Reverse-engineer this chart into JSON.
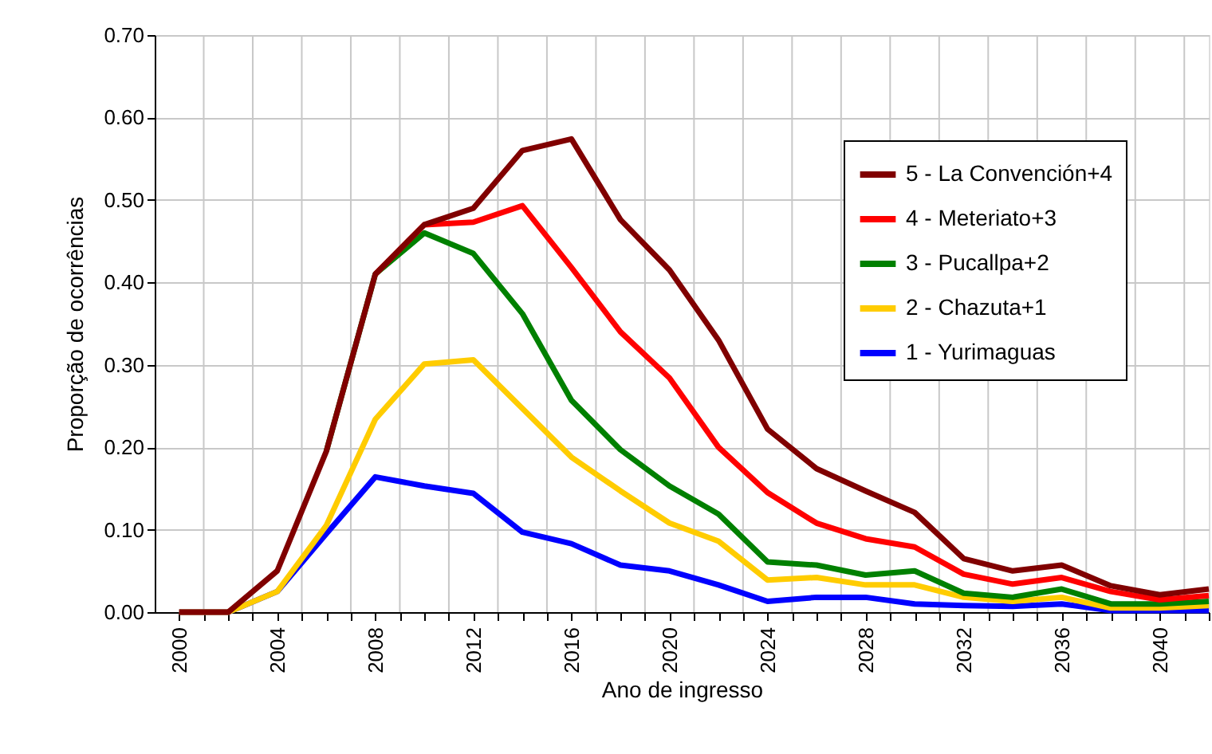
{
  "chart_data": {
    "type": "line",
    "xlabel": "Ano de ingresso",
    "ylabel": "Proporção de ocorrências",
    "x": [
      2000,
      2002,
      2004,
      2006,
      2008,
      2010,
      2012,
      2014,
      2016,
      2018,
      2020,
      2022,
      2024,
      2026,
      2028,
      2030,
      2032,
      2034,
      2036,
      2038,
      2040,
      2042
    ],
    "series": [
      {
        "name": "5 - La Convención+4",
        "color": "#800000",
        "values": [
          0,
          0,
          0.05,
          0.195,
          0.41,
          0.47,
          0.49,
          0.56,
          0.574,
          0.476,
          0.415,
          0.33,
          0.222,
          0.174,
          0.147,
          0.121,
          0.065,
          0.05,
          0.057,
          0.032,
          0.021,
          0.028
        ]
      },
      {
        "name": "4 - Meteriato+3",
        "color": "#ff0000",
        "values": [
          null,
          null,
          null,
          null,
          0.41,
          0.47,
          0.473,
          0.493,
          0.418,
          0.34,
          0.284,
          0.2,
          0.145,
          0.108,
          0.089,
          0.079,
          0.046,
          0.034,
          0.042,
          0.025,
          0.015,
          0.02
        ]
      },
      {
        "name": "3 - Pucallpa+2",
        "color": "#008000",
        "values": [
          null,
          null,
          null,
          0.195,
          0.41,
          0.46,
          0.435,
          0.362,
          0.257,
          0.197,
          0.153,
          0.119,
          0.061,
          0.057,
          0.045,
          0.05,
          0.023,
          0.018,
          0.028,
          0.01,
          0.01,
          0.013
        ]
      },
      {
        "name": "2 - Chazuta+1",
        "color": "#ffcc00",
        "values": [
          0,
          0,
          0.025,
          0.105,
          0.234,
          0.301,
          0.306,
          0.247,
          0.188,
          0.147,
          0.108,
          0.086,
          0.039,
          0.042,
          0.033,
          0.033,
          0.018,
          0.013,
          0.018,
          0.005,
          0.005,
          0.008
        ]
      },
      {
        "name": "1 - Yurimaguas",
        "color": "#0000ff",
        "values": [
          0,
          0,
          0.025,
          0.095,
          0.164,
          0.153,
          0.144,
          0.097,
          0.083,
          0.057,
          0.05,
          0.033,
          0.013,
          0.018,
          0.018,
          0.01,
          0.008,
          0.007,
          0.01,
          0.002,
          0.002,
          0.002
        ]
      }
    ],
    "xlim": [
      1999,
      2042
    ],
    "xticks": [
      2000,
      {
        "value": 2001,
        "label": null
      },
      {
        "value": 2002,
        "label": null
      },
      {
        "value": 2003,
        "label": null
      },
      2004,
      {
        "value": 2005,
        "label": null
      },
      {
        "value": 2006,
        "label": null
      },
      {
        "value": 2007,
        "label": null
      },
      2008,
      {
        "value": 2009,
        "label": null
      },
      {
        "value": 2010,
        "label": null
      },
      {
        "value": 2011,
        "label": null
      },
      2012,
      {
        "value": 2013,
        "label": null
      },
      {
        "value": 2014,
        "label": null
      },
      {
        "value": 2015,
        "label": null
      },
      2016,
      {
        "value": 2017,
        "label": null
      },
      {
        "value": 2018,
        "label": null
      },
      {
        "value": 2019,
        "label": null
      },
      2020,
      {
        "value": 2021,
        "label": null
      },
      {
        "value": 2022,
        "label": null
      },
      {
        "value": 2023,
        "label": null
      },
      2024,
      {
        "value": 2025,
        "label": null
      },
      {
        "value": 2026,
        "label": null
      },
      {
        "value": 2027,
        "label": null
      },
      2028,
      {
        "value": 2029,
        "label": null
      },
      {
        "value": 2030,
        "label": null
      },
      {
        "value": 2031,
        "label": null
      },
      2032,
      {
        "value": 2033,
        "label": null
      },
      {
        "value": 2034,
        "label": null
      },
      {
        "value": 2035,
        "label": null
      },
      2036,
      {
        "value": 2037,
        "label": null
      },
      {
        "value": 2038,
        "label": null
      },
      {
        "value": 2039,
        "label": null
      },
      2040,
      {
        "value": 2041,
        "label": null
      },
      {
        "value": 2042,
        "label": null
      }
    ],
    "ylim": [
      0,
      0.7
    ],
    "yticks": [
      {
        "value": 0,
        "label": "0.00"
      },
      {
        "value": 0.1,
        "label": "0.10"
      },
      {
        "value": 0.2,
        "label": "0.20"
      },
      {
        "value": 0.3,
        "label": "0.30"
      },
      {
        "value": 0.4,
        "label": "0.40"
      },
      {
        "value": 0.5,
        "label": "0.50"
      },
      {
        "value": 0.6,
        "label": "0.60"
      },
      {
        "value": 0.7,
        "label": "0.70"
      }
    ],
    "grid": true,
    "legend": "right",
    "marker": "none",
    "line_style": "solid"
  }
}
